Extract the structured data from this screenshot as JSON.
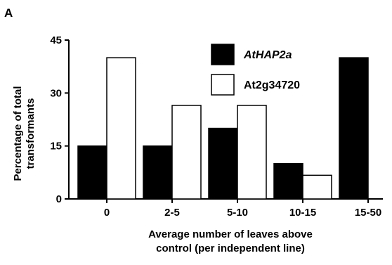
{
  "panel_label": "A",
  "chart_data": {
    "type": "bar",
    "categories": [
      "0",
      "2-5",
      "5-10",
      "10-15",
      "15-50"
    ],
    "series": [
      {
        "name": "AtHAP2a",
        "values": [
          15,
          15,
          20,
          10,
          40
        ],
        "color": "#000000"
      },
      {
        "name": "At2g34720",
        "values": [
          40,
          26.5,
          26.5,
          6.7,
          0
        ],
        "color": "#ffffff"
      }
    ],
    "ylabel_line1": "Percentage of total",
    "ylabel_line2": "transformants",
    "xlabel_line1": "Average number of leaves above",
    "xlabel_line2": "control (per independent line)",
    "ylim": [
      0,
      45
    ],
    "yticks": [
      "0",
      "15",
      "30",
      "45"
    ],
    "legend_position": "top-center",
    "grid": false
  }
}
